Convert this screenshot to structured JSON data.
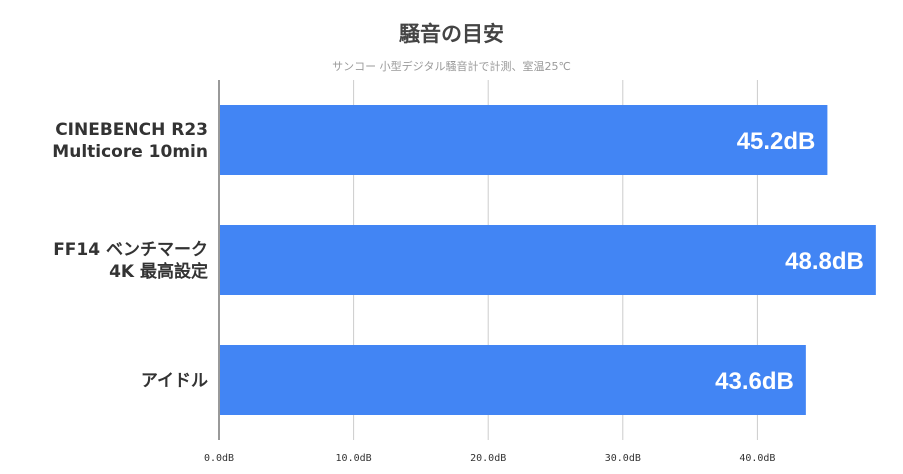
{
  "chart_data": {
    "type": "bar",
    "orientation": "horizontal",
    "title": "騒音の目安",
    "subtitle": "サンコー 小型デジタル騒音計で計測、室温25℃",
    "categories": [
      [
        "CINEBENCH R23",
        "Multicore 10min"
      ],
      [
        "FF14 ベンチマーク",
        "4K 最高設定"
      ],
      [
        "アイドル"
      ]
    ],
    "values": [
      45.2,
      48.8,
      43.6
    ],
    "data_labels": [
      "45.2dB",
      "48.8dB",
      "43.6dB"
    ],
    "xlim": [
      0,
      50
    ],
    "ticks": [
      0,
      10,
      20,
      30,
      40
    ],
    "tick_labels": [
      "0.0dB",
      "10.0dB",
      "20.0dB",
      "30.0dB",
      "40.0dB"
    ],
    "grid": true,
    "legend": "none",
    "colors": {
      "bar": "#4285f4",
      "grid": "#cccccc",
      "axis": "#333333",
      "label": "#333333",
      "data_label": "#ffffff"
    }
  }
}
